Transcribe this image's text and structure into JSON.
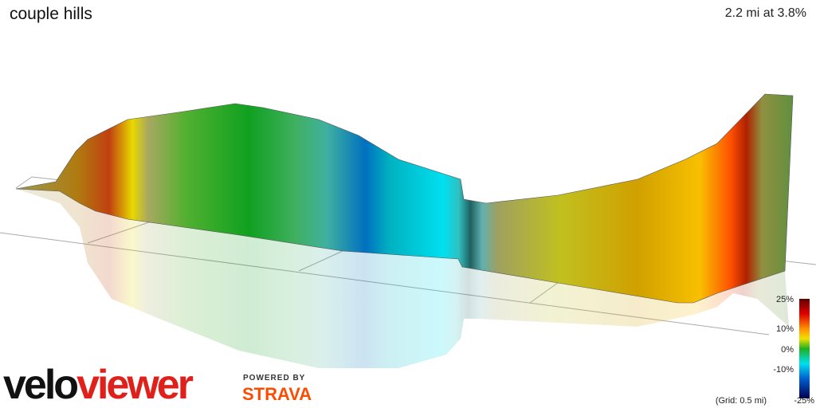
{
  "header": {
    "title": "couple hills",
    "stats": "2.2 mi at 3.8%"
  },
  "legend": {
    "labels": [
      "25%",
      "10%",
      "0%",
      "-10%",
      "-25%"
    ],
    "grid_note": "(Grid: 0.5 mi)"
  },
  "logo": {
    "velo": "velo",
    "viewer": "viewer",
    "powered_by": "POWERED BY",
    "strava": "STRAVA"
  }
}
